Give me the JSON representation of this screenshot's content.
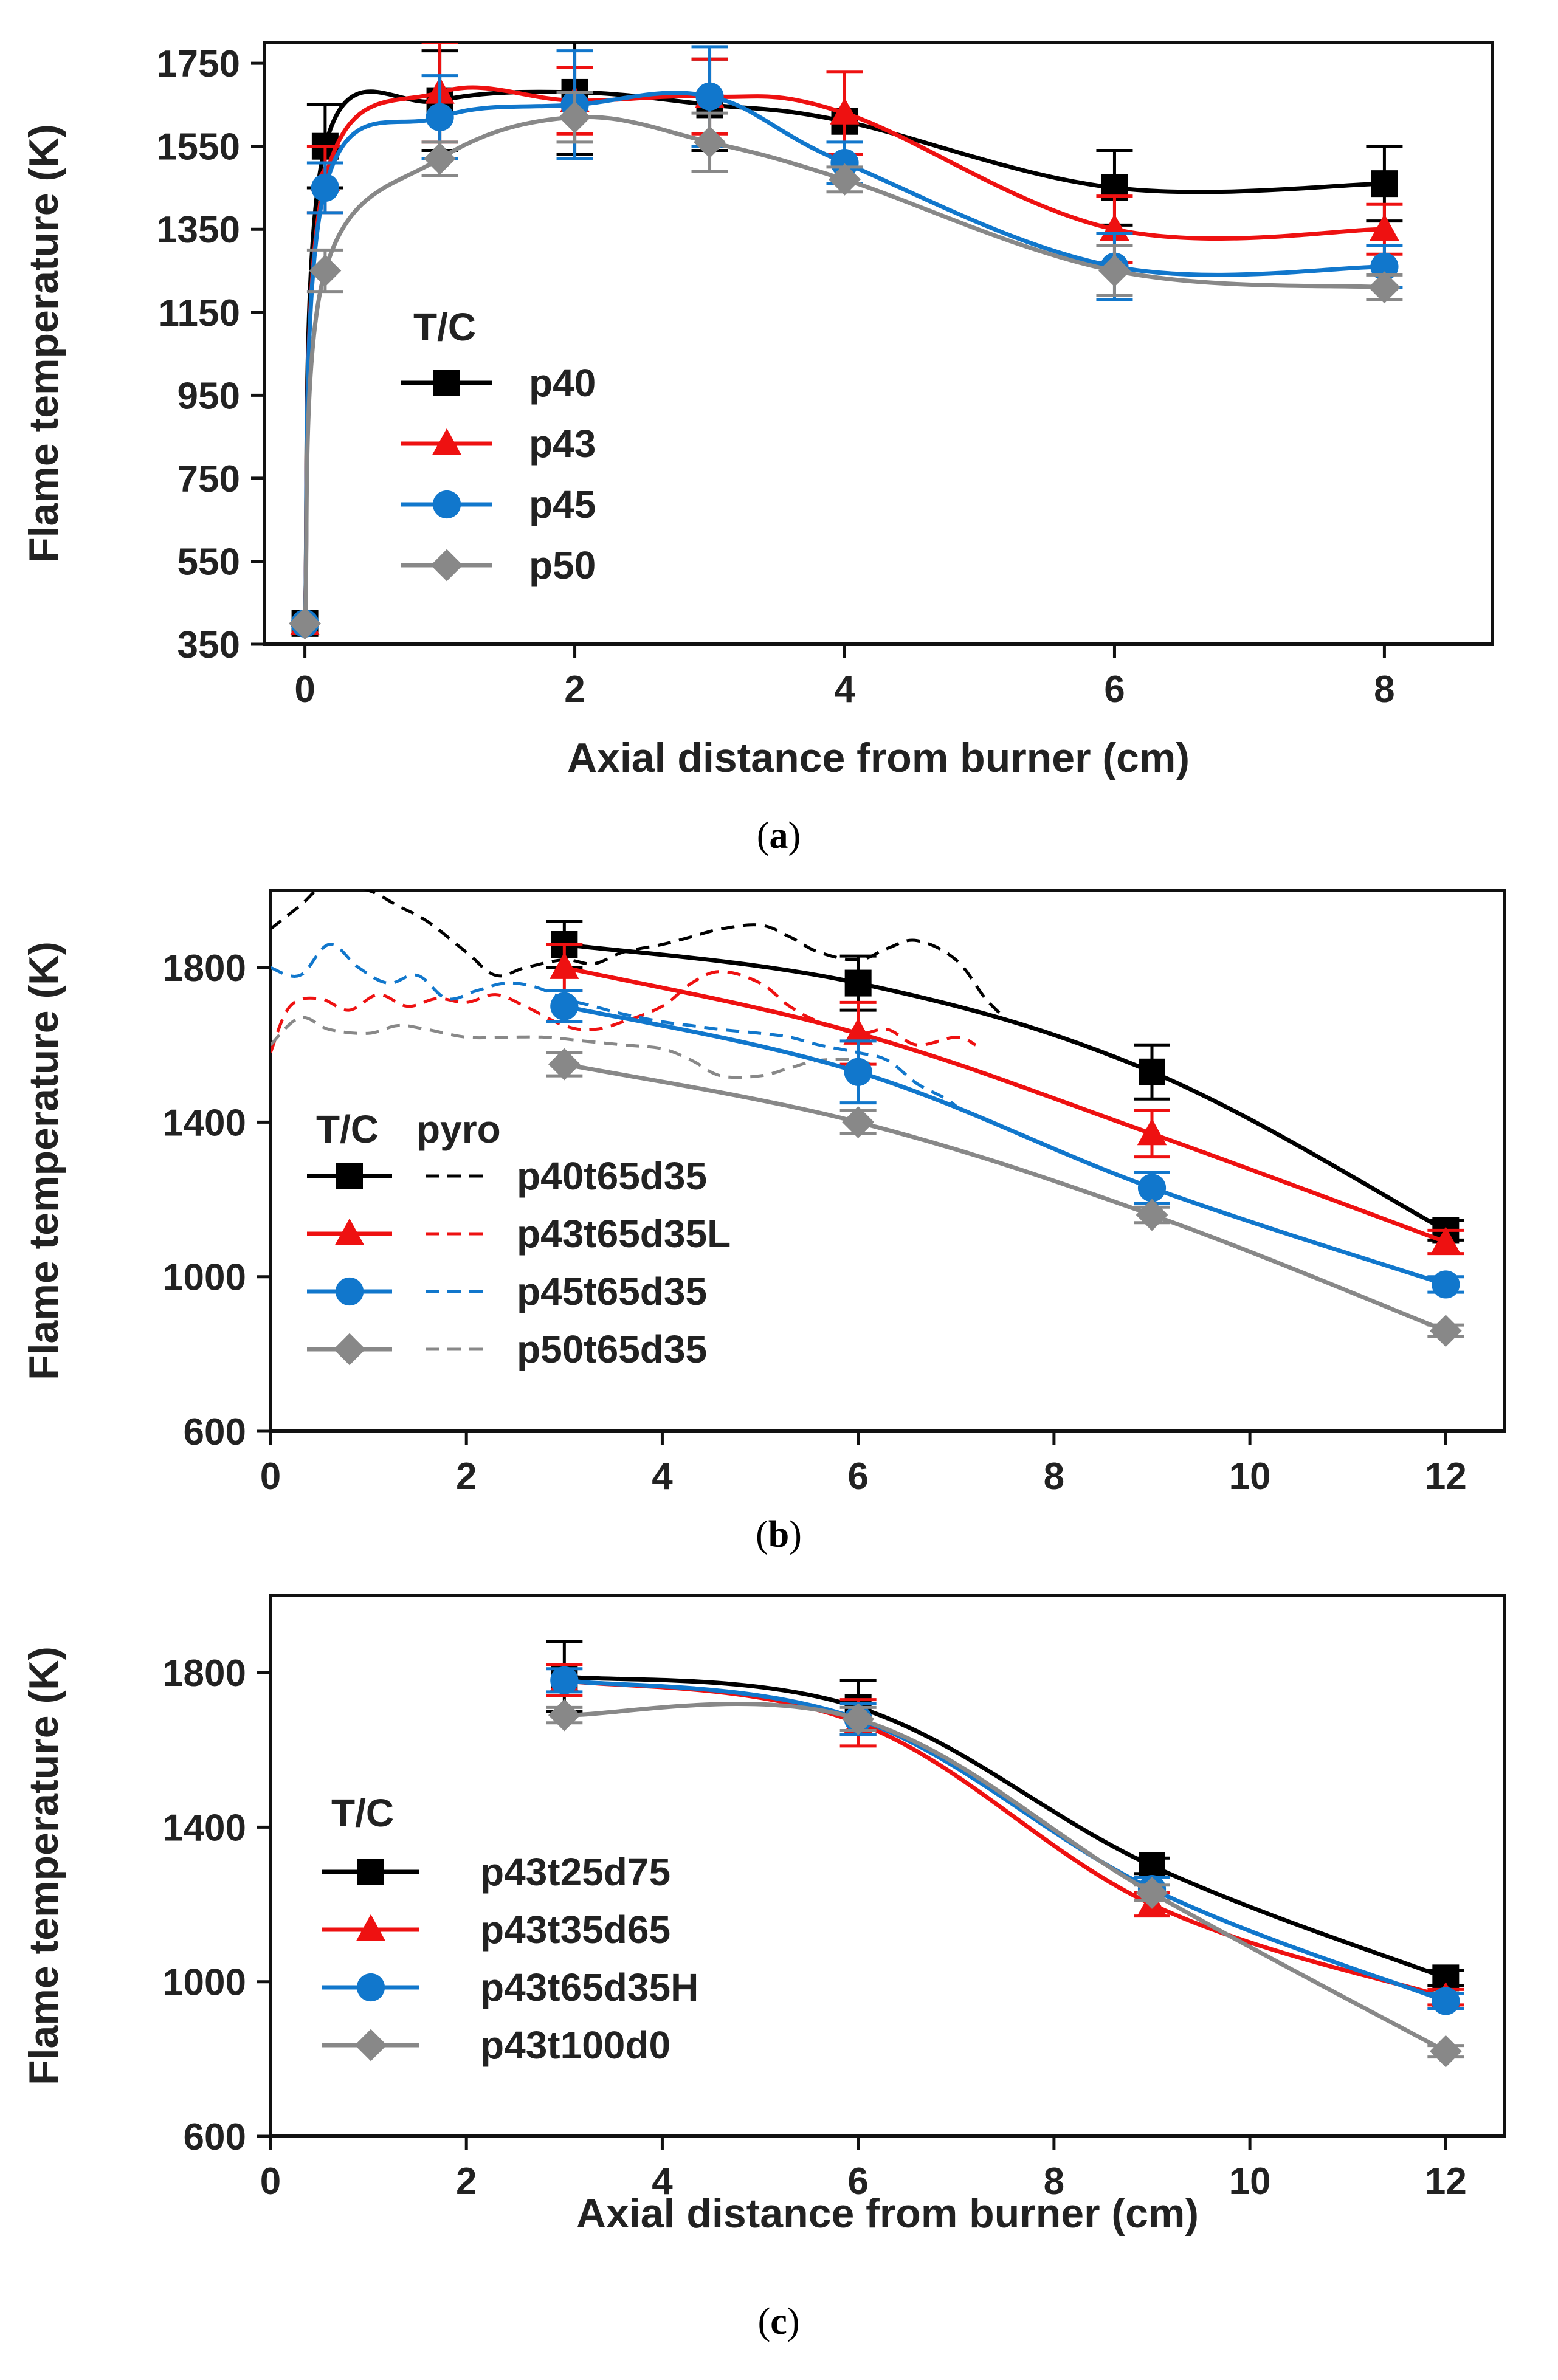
{
  "chart_data": [
    {
      "type": "line",
      "panel_label": "a",
      "xlabel": "Axial distance from burner (cm)",
      "ylabel": "Flame temperature (K)",
      "xlim": [
        -0.3,
        8.8
      ],
      "ylim": [
        350,
        1800
      ],
      "xticks": [
        0,
        2,
        4,
        6,
        8
      ],
      "yticks": [
        350,
        550,
        750,
        950,
        1150,
        1350,
        1550,
        1750
      ],
      "grid": false,
      "legend": {
        "title": "T/C",
        "placement": "center-left"
      },
      "x": [
        0,
        0.15,
        1,
        2,
        3,
        4,
        6,
        8
      ],
      "series": [
        {
          "name": "p40",
          "marker": "square",
          "color": "#000000",
          "values": [
            400,
            1550,
            1660,
            1680,
            1650,
            1610,
            1450,
            1460
          ],
          "errors": [
            0,
            100,
            120,
            150,
            110,
            0,
            90,
            90
          ]
        },
        {
          "name": "p43",
          "marker": "triangle",
          "color": "#ee1111",
          "values": [
            400,
            1470,
            1680,
            1660,
            1670,
            1630,
            1350,
            1350
          ],
          "errors": [
            0,
            80,
            120,
            80,
            90,
            100,
            80,
            60
          ]
        },
        {
          "name": "p45",
          "marker": "circle",
          "color": "#1177cc",
          "values": [
            400,
            1450,
            1620,
            1650,
            1670,
            1510,
            1260,
            1260
          ],
          "errors": [
            0,
            60,
            100,
            130,
            120,
            50,
            80,
            50
          ]
        },
        {
          "name": "p50",
          "marker": "diamond",
          "color": "#888888",
          "values": [
            400,
            1250,
            1520,
            1620,
            1560,
            1470,
            1250,
            1210
          ],
          "errors": [
            0,
            50,
            40,
            60,
            70,
            30,
            60,
            30
          ]
        }
      ]
    },
    {
      "type": "line",
      "panel_label": "b",
      "xlabel": "",
      "ylabel": "Flame temperature (K)",
      "xlim": [
        0,
        12.6
      ],
      "ylim": [
        600,
        2000
      ],
      "xticks": [
        0,
        2,
        4,
        6,
        8,
        10,
        12
      ],
      "yticks": [
        600,
        1000,
        1400,
        1800
      ],
      "grid": false,
      "legend": {
        "titles": [
          "T/C",
          "pyro"
        ],
        "placement": "center-left"
      },
      "x": [
        3,
        6,
        9,
        12
      ],
      "series": [
        {
          "name": "p40t65d35",
          "marker": "square",
          "color": "#000000",
          "values": [
            1860,
            1760,
            1530,
            1120
          ],
          "errors": [
            60,
            70,
            70,
            25
          ]
        },
        {
          "name": "p43t65d35L",
          "marker": "triangle",
          "color": "#ee1111",
          "values": [
            1800,
            1630,
            1370,
            1090
          ],
          "errors": [
            60,
            80,
            60,
            30
          ]
        },
        {
          "name": "p45t65d35",
          "marker": "circle",
          "color": "#1177cc",
          "values": [
            1700,
            1530,
            1230,
            980
          ],
          "errors": [
            40,
            80,
            40,
            20
          ]
        },
        {
          "name": "p50t65d35",
          "marker": "diamond",
          "color": "#888888",
          "values": [
            1550,
            1400,
            1160,
            860
          ],
          "errors": [
            30,
            30,
            20,
            15
          ]
        }
      ],
      "pyro_series": [
        {
          "name": "p40t65d35",
          "color": "#000000",
          "x": [
            0,
            0.3,
            0.6,
            1.0,
            1.3,
            1.6,
            2.0,
            2.3,
            2.6,
            3.0,
            3.3,
            3.6,
            4.0,
            4.3,
            4.6,
            5.0,
            5.3,
            5.6,
            6.0,
            6.3,
            6.6,
            7.0,
            7.3,
            7.5
          ],
          "y": [
            1900,
            1960,
            2020,
            2000,
            1960,
            1920,
            1840,
            1780,
            1800,
            1820,
            1810,
            1840,
            1860,
            1880,
            1900,
            1910,
            1880,
            1840,
            1820,
            1850,
            1870,
            1820,
            1720,
            1670
          ]
        },
        {
          "name": "p43t65d35L",
          "color": "#ee1111",
          "x": [
            0,
            0.2,
            0.5,
            0.8,
            1.1,
            1.4,
            1.7,
            2.0,
            2.3,
            2.6,
            3.0,
            3.3,
            3.6,
            4.0,
            4.3,
            4.6,
            5.0,
            5.3,
            5.6,
            6.0,
            6.3,
            6.6,
            7.0,
            7.2
          ],
          "y": [
            1580,
            1700,
            1720,
            1690,
            1730,
            1700,
            1720,
            1710,
            1730,
            1700,
            1650,
            1640,
            1660,
            1700,
            1760,
            1790,
            1760,
            1700,
            1660,
            1630,
            1640,
            1600,
            1620,
            1600
          ]
        },
        {
          "name": "p45t65d35",
          "color": "#1177cc",
          "x": [
            0,
            0.3,
            0.6,
            0.9,
            1.2,
            1.5,
            1.8,
            2.1,
            2.4,
            2.7,
            3.0,
            3.3,
            3.6,
            4.0,
            4.3,
            4.6,
            5.0,
            5.3,
            5.6,
            6.0,
            6.3,
            6.6,
            6.9,
            7.1
          ],
          "y": [
            1800,
            1780,
            1860,
            1800,
            1760,
            1780,
            1720,
            1740,
            1760,
            1750,
            1720,
            1700,
            1680,
            1660,
            1650,
            1640,
            1630,
            1620,
            1600,
            1580,
            1560,
            1500,
            1460,
            1420
          ]
        },
        {
          "name": "p50t65d35",
          "color": "#888888",
          "x": [
            0,
            0.3,
            0.6,
            1.0,
            1.3,
            1.6,
            2.0,
            2.4,
            2.8,
            3.2,
            3.6,
            4.0,
            4.3,
            4.6,
            5.0,
            5.3,
            5.6,
            6.0,
            6.2
          ],
          "y": [
            1600,
            1670,
            1640,
            1630,
            1650,
            1640,
            1620,
            1620,
            1620,
            1610,
            1600,
            1590,
            1560,
            1520,
            1520,
            1540,
            1560,
            1560,
            1540
          ]
        }
      ]
    },
    {
      "type": "line",
      "panel_label": "c",
      "xlabel": "Axial distance from burner (cm)",
      "ylabel": "Flame temperature (K)",
      "xlim": [
        0,
        12.6
      ],
      "ylim": [
        600,
        2000
      ],
      "xticks": [
        0,
        2,
        4,
        6,
        8,
        10,
        12
      ],
      "yticks": [
        600,
        1000,
        1400,
        1800
      ],
      "grid": false,
      "legend": {
        "title": "T/C",
        "placement": "center-left"
      },
      "x": [
        3,
        6,
        9,
        12
      ],
      "series": [
        {
          "name": "p43t25d75",
          "marker": "square",
          "color": "#000000",
          "values": [
            1790,
            1710,
            1300,
            1010
          ],
          "errors": [
            90,
            70,
            20,
            20
          ]
        },
        {
          "name": "p43t35d65",
          "marker": "triangle",
          "color": "#ee1111",
          "values": [
            1780,
            1670,
            1200,
            960
          ],
          "errors": [
            40,
            60,
            30,
            20
          ]
        },
        {
          "name": "p43t65d35H",
          "marker": "circle",
          "color": "#1177cc",
          "values": [
            1780,
            1680,
            1240,
            950
          ],
          "errors": [
            30,
            40,
            30,
            20
          ]
        },
        {
          "name": "p43t100d0",
          "marker": "diamond",
          "color": "#888888",
          "values": [
            1690,
            1680,
            1230,
            820
          ],
          "errors": [
            20,
            30,
            20,
            15
          ]
        }
      ]
    }
  ]
}
